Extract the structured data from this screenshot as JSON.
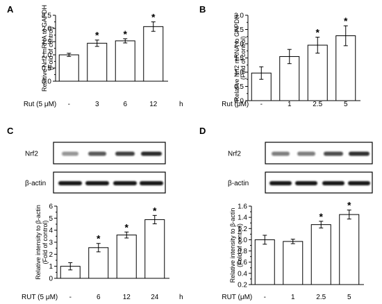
{
  "chart_data": [
    {
      "panel_label": "A",
      "type": "bar",
      "categories": [
        "-",
        "3",
        "6",
        "12"
      ],
      "values": [
        1.0,
        1.44,
        1.53,
        2.07
      ],
      "errors": [
        0.06,
        0.12,
        0.08,
        0.18
      ],
      "significant": [
        false,
        true,
        true,
        true
      ],
      "ylabel_lines": [
        "Relative Nrf2 mRNA to GAPDH",
        "(Fold of control)"
      ],
      "ylim": [
        0,
        2.5
      ],
      "yticks": [
        "0.0",
        "0.5",
        "1.0",
        "1.5",
        "2.0",
        "2.5"
      ],
      "xlabel_left": "Rut  (5 μM)",
      "xlabel_unit": "h",
      "marker": "*"
    },
    {
      "panel_label": "B",
      "type": "bar",
      "categories": [
        "-",
        "1",
        "2.5",
        "5"
      ],
      "values": [
        0.97,
        1.55,
        1.95,
        2.28
      ],
      "errors": [
        0.22,
        0.25,
        0.28,
        0.35
      ],
      "significant": [
        false,
        false,
        true,
        true
      ],
      "ylabel_lines": [
        "Relative Nrf2 mRNA to GAPDH",
        "(Fold of control)"
      ],
      "ylim": [
        0,
        3.0
      ],
      "yticks": [
        "0.0",
        "0.5",
        "1.0",
        "1.5",
        "2.0",
        "2.5",
        "3.0"
      ],
      "xlabel_left": "Rut  (μM)",
      "xlabel_unit": "",
      "marker": "*"
    },
    {
      "panel_label": "C",
      "type": "bar",
      "categories": [
        "-",
        "6",
        "12",
        "24"
      ],
      "values": [
        1.0,
        2.55,
        3.6,
        4.88
      ],
      "errors": [
        0.3,
        0.35,
        0.25,
        0.35
      ],
      "significant": [
        false,
        true,
        true,
        true
      ],
      "ylabel_lines": [
        "Relative intensity to β-actin",
        "(Fold of control)"
      ],
      "ylim": [
        0,
        6
      ],
      "yticks": [
        "0",
        "1",
        "2",
        "3",
        "4",
        "5",
        "6"
      ],
      "xlabel_left": "RUT  (5 μM)",
      "xlabel_unit": "h",
      "marker": "*",
      "blot_labels": [
        "Nrf2",
        "β-actin"
      ]
    },
    {
      "panel_label": "D",
      "type": "bar",
      "categories": [
        "-",
        "1",
        "2.5",
        "5"
      ],
      "values": [
        1.0,
        0.97,
        1.27,
        1.45
      ],
      "errors": [
        0.08,
        0.04,
        0.06,
        0.08
      ],
      "significant": [
        false,
        false,
        true,
        true
      ],
      "ylabel_lines": [
        "Relative intensity to β-actin",
        "(Fold of control)"
      ],
      "ylim": [
        0.2,
        1.6
      ],
      "yticks": [
        "0.2",
        "0.4",
        "0.6",
        "0.8",
        "1.0",
        "1.2",
        "1.4",
        "1.6"
      ],
      "xlabel_left": "RUT  (μM)",
      "xlabel_unit": "",
      "marker": "*",
      "blot_labels": [
        "Nrf2",
        "β-actin"
      ]
    }
  ]
}
